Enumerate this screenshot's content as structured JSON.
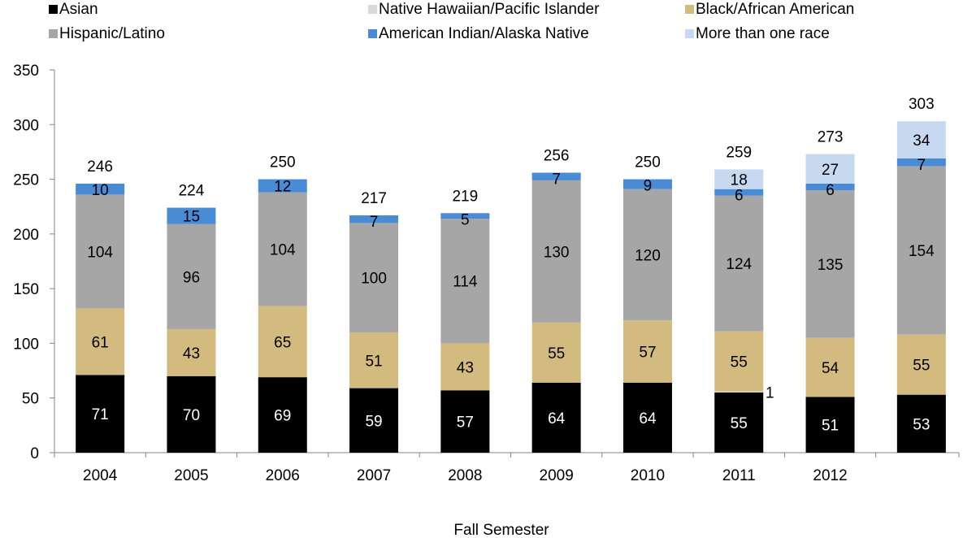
{
  "chart_data": {
    "type": "bar",
    "stacked": true,
    "title": "",
    "xlabel": "Fall Semester",
    "ylabel": "",
    "ylim": [
      0,
      350
    ],
    "yticks": [
      0,
      50,
      100,
      150,
      200,
      250,
      300,
      350
    ],
    "grid": false,
    "legend_position": "top",
    "categories": [
      "2004",
      "2005",
      "2006",
      "2007",
      "2008",
      "2009",
      "2010",
      "2011",
      "2012",
      ""
    ],
    "series": [
      {
        "name": "Asian",
        "color": "#000000",
        "label_color": "#ffffff",
        "values": [
          71,
          70,
          69,
          59,
          57,
          64,
          64,
          55,
          51,
          53
        ]
      },
      {
        "name": "Native Hawaiian/Pacific Islander",
        "color": "#d9d9d9",
        "label_color": "#000000",
        "values": [
          0,
          0,
          0,
          0,
          0,
          0,
          0,
          1,
          0,
          0
        ]
      },
      {
        "name": "Black/African American",
        "color": "#d3bb7f",
        "label_color": "#000000",
        "values": [
          61,
          43,
          65,
          51,
          43,
          55,
          57,
          55,
          54,
          55
        ]
      },
      {
        "name": "Hispanic/Latino",
        "color": "#a6a6a6",
        "label_color": "#000000",
        "values": [
          104,
          96,
          104,
          100,
          114,
          130,
          120,
          124,
          135,
          154
        ]
      },
      {
        "name": "American Indian/Alaska Native",
        "color": "#4a8bd6",
        "label_color": "#000000",
        "values": [
          10,
          15,
          12,
          7,
          5,
          7,
          9,
          6,
          6,
          7
        ]
      },
      {
        "name": "More than one race",
        "color": "#c6d9f1",
        "label_color": "#000000",
        "values": [
          0,
          0,
          0,
          0,
          0,
          0,
          0,
          18,
          27,
          34
        ]
      }
    ],
    "totals": [
      246,
      224,
      250,
      217,
      219,
      256,
      250,
      259,
      273,
      303
    ]
  }
}
